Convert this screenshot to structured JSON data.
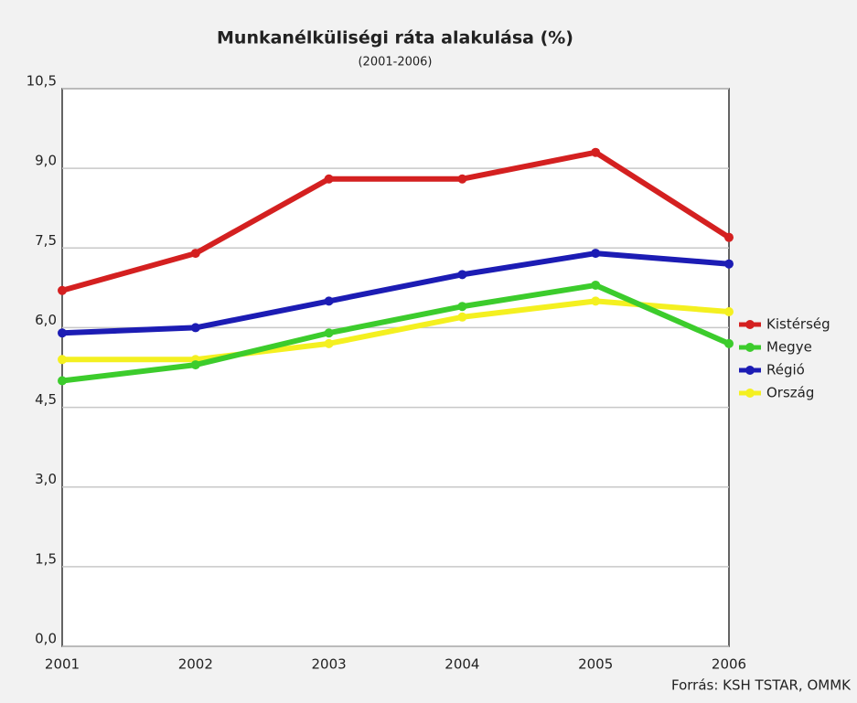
{
  "chart_data": {
    "type": "line",
    "title": "Munkanélküliségi ráta alakulása (%)",
    "subtitle": "(2001-2006)",
    "source": "Forrás: KSH TSTAR, OMMK",
    "categories": [
      "2001",
      "2002",
      "2003",
      "2004",
      "2005",
      "2006"
    ],
    "series": [
      {
        "name": "Kistérség",
        "color": "#d42020",
        "values": [
          6.7,
          7.4,
          8.8,
          8.8,
          9.3,
          7.7
        ]
      },
      {
        "name": "Megye",
        "color": "#3ccc2c",
        "values": [
          5.0,
          5.3,
          5.9,
          6.4,
          6.8,
          5.7
        ]
      },
      {
        "name": "Régió",
        "color": "#1c1cb4",
        "values": [
          5.9,
          6.0,
          6.5,
          7.0,
          7.4,
          7.2
        ]
      },
      {
        "name": "Ország",
        "color": "#f4f020",
        "values": [
          5.4,
          5.4,
          5.7,
          6.2,
          6.5,
          6.3
        ]
      }
    ],
    "ylim": [
      0,
      10.5
    ],
    "yticks": [
      {
        "value": 0,
        "label": "0,0"
      },
      {
        "value": 1.5,
        "label": "1,5"
      },
      {
        "value": 3,
        "label": "3,0"
      },
      {
        "value": 4.5,
        "label": "4,5"
      },
      {
        "value": 6,
        "label": "6,0"
      },
      {
        "value": 7.5,
        "label": "7,5"
      },
      {
        "value": 9,
        "label": "9,0"
      },
      {
        "value": 10.5,
        "label": "10,5"
      }
    ],
    "grid": true,
    "legend": "right"
  }
}
